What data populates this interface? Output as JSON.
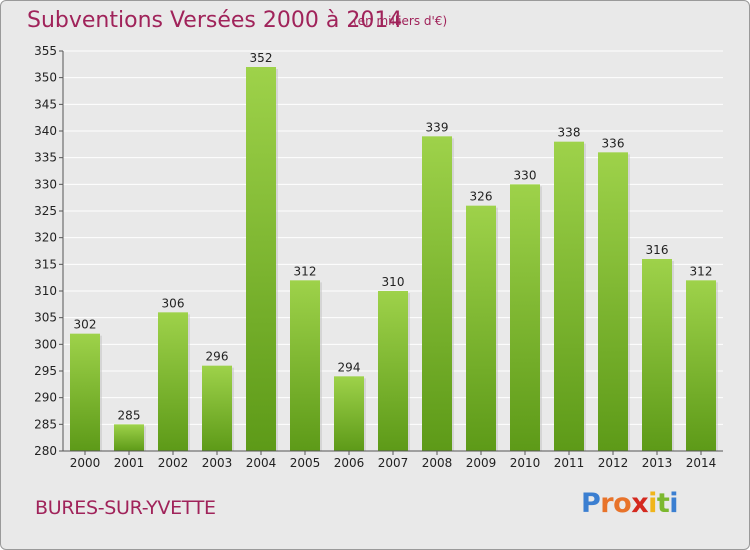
{
  "title": "Subventions Versées 2000 à 2014",
  "subtitle": "(en milliers d'€)",
  "location": "BURES-SUR-YVETTE",
  "logo": {
    "letters": [
      "P",
      "r",
      "o",
      "x",
      "i",
      "t",
      "i"
    ],
    "colors": [
      "#3b7fd1",
      "#e8732a",
      "#e8732a",
      "#d4291f",
      "#f0b51b",
      "#7cb82f",
      "#3b7fd1"
    ]
  },
  "colors": {
    "bar_light": "#9ed24a",
    "bar_dark": "#5d9a18",
    "grid": "#ffffff",
    "text_accent": "#a0235a"
  },
  "chart_data": {
    "type": "bar",
    "categories": [
      "2000",
      "2001",
      "2002",
      "2003",
      "2004",
      "2005",
      "2006",
      "2007",
      "2008",
      "2009",
      "2010",
      "2011",
      "2012",
      "2013",
      "2014"
    ],
    "values": [
      302,
      285,
      306,
      296,
      352,
      312,
      294,
      310,
      339,
      326,
      330,
      338,
      336,
      316,
      312
    ],
    "title": "Subventions Versées 2000 à 2014",
    "xlabel": "",
    "ylabel": "",
    "ylim": [
      280,
      355
    ],
    "yticks": [
      280,
      285,
      290,
      295,
      300,
      305,
      310,
      315,
      320,
      325,
      330,
      335,
      340,
      345,
      350,
      355
    ],
    "grid": true,
    "data_labels": true
  }
}
